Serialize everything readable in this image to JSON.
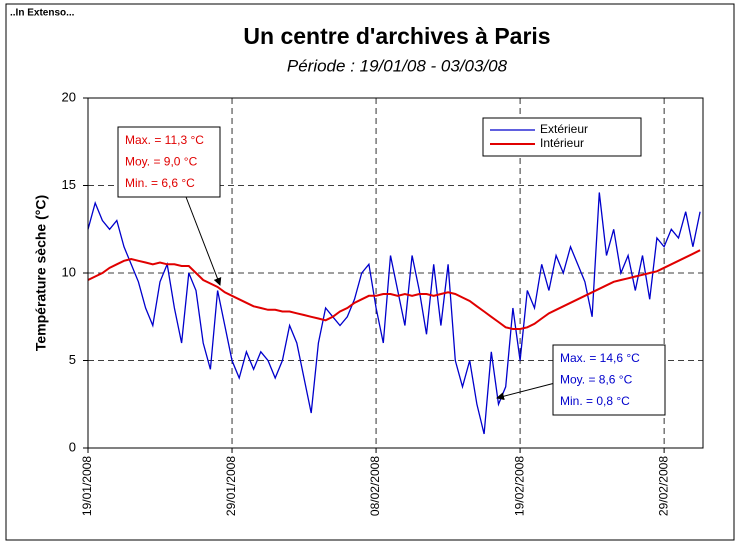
{
  "header": "..In Extenso...",
  "chart_data": {
    "type": "line",
    "title": "Un centre d'archives à Paris",
    "subtitle": "Période : 19/01/08 - 03/03/08",
    "ylabel": "Température sèche (°C)",
    "x": [
      0,
      0.5,
      1,
      1.5,
      2,
      2.5,
      3,
      3.5,
      4,
      4.5,
      5,
      5.5,
      6,
      6.5,
      7,
      7.5,
      8,
      8.5,
      9,
      9.5,
      10,
      10.5,
      11,
      11.5,
      12,
      12.5,
      13,
      13.5,
      14,
      14.5,
      15,
      15.5,
      16,
      16.5,
      17,
      17.5,
      18,
      18.5,
      19,
      19.5,
      20,
      20.5,
      21,
      21.5,
      22,
      22.5,
      23,
      23.5,
      24,
      24.5,
      25,
      25.5,
      26,
      26.5,
      27,
      27.5,
      28,
      28.5,
      29,
      29.5,
      30,
      30.5,
      31,
      31.5,
      32,
      32.5,
      33,
      33.5,
      34,
      34.5,
      35,
      35.5,
      36,
      36.5,
      37,
      37.5,
      38,
      38.5,
      39,
      39.5,
      40,
      40.5,
      41,
      41.5,
      42,
      42.5
    ],
    "series": [
      {
        "name": "Extérieur",
        "color": "#0000cc",
        "values": [
          12.5,
          14,
          13,
          12.5,
          13,
          11.5,
          10.5,
          9.5,
          8,
          7,
          9.5,
          10.5,
          8,
          6,
          10,
          9,
          6,
          4.5,
          9,
          7,
          5,
          4,
          5.5,
          4.5,
          5.5,
          5,
          4,
          5,
          7,
          6,
          4,
          2,
          6,
          8,
          7.5,
          7,
          7.5,
          8.5,
          10,
          10.5,
          8,
          6,
          11,
          9,
          7,
          11,
          9,
          6.5,
          10.5,
          7,
          10.5,
          5,
          3.5,
          5,
          2.5,
          0.8,
          5.5,
          2.5,
          3.5,
          8,
          5,
          9,
          8,
          10.5,
          9,
          11,
          10,
          11.5,
          10.5,
          9.5,
          7.5,
          14.6,
          11,
          12.5,
          10,
          11,
          9,
          11,
          8.5,
          12,
          11.5,
          12.5,
          12,
          13.5,
          11.5,
          13.5
        ]
      },
      {
        "name": "Intérieur",
        "color": "#e00000",
        "values": [
          9.6,
          9.8,
          10.0,
          10.3,
          10.5,
          10.7,
          10.8,
          10.7,
          10.6,
          10.5,
          10.6,
          10.5,
          10.5,
          10.4,
          10.4,
          10.0,
          9.6,
          9.4,
          9.2,
          8.9,
          8.7,
          8.5,
          8.3,
          8.1,
          8.0,
          7.9,
          7.9,
          7.8,
          7.8,
          7.7,
          7.6,
          7.5,
          7.4,
          7.3,
          7.5,
          7.8,
          8.0,
          8.3,
          8.5,
          8.7,
          8.7,
          8.8,
          8.8,
          8.7,
          8.8,
          8.7,
          8.8,
          8.8,
          8.7,
          8.8,
          8.9,
          8.8,
          8.6,
          8.4,
          8.1,
          7.8,
          7.5,
          7.2,
          6.9,
          6.8,
          6.8,
          6.9,
          7.1,
          7.4,
          7.7,
          7.9,
          8.1,
          8.3,
          8.5,
          8.7,
          8.9,
          9.1,
          9.3,
          9.5,
          9.6,
          9.7,
          9.8,
          9.9,
          10.0,
          10.1,
          10.3,
          10.5,
          10.7,
          10.9,
          11.1,
          11.3
        ]
      }
    ],
    "xlim": [
      0,
      42.7
    ],
    "xticks": [
      {
        "value": 0,
        "label": "19/01/2008"
      },
      {
        "value": 10,
        "label": "29/01/2008"
      },
      {
        "value": 20,
        "label": "08/02/2008"
      },
      {
        "value": 30,
        "label": "19/02/2008"
      },
      {
        "value": 40,
        "label": "29/02/2008"
      }
    ],
    "ylim": [
      0,
      20
    ],
    "yticks": [
      0,
      5,
      10,
      15,
      20
    ],
    "grid": true,
    "legend": "upper right",
    "annotations": [
      {
        "color": "#e00000",
        "lines": [
          "Max. = 11,3 °C",
          "Moy. = 9,0 °C",
          "Min.  = 6,6 °C"
        ]
      },
      {
        "color": "#0000cc",
        "lines": [
          "Max. = 14,6 °C",
          "Moy. = 8,6 °C",
          "Min.  = 0,8 °C"
        ]
      }
    ]
  }
}
